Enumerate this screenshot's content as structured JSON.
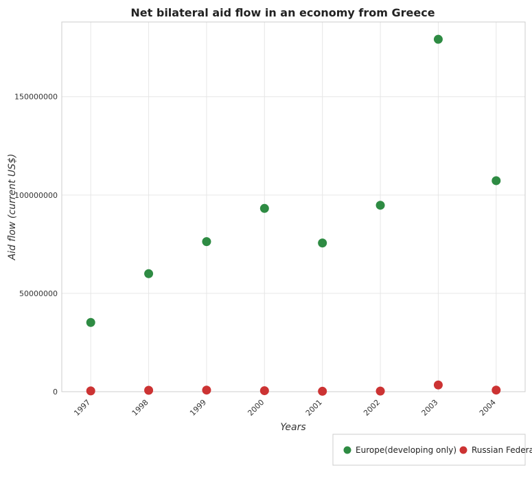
{
  "chart_data": {
    "type": "scatter",
    "title": "Net bilateral aid flow in an economy from Greece",
    "xlabel": "Years",
    "ylabel": "Aid flow (current US$)",
    "categories": [
      "1997",
      "1998",
      "1999",
      "2000",
      "2001",
      "2002",
      "2003",
      "2004"
    ],
    "ylim": [
      0,
      188000000
    ],
    "yticks": [
      0,
      50000000,
      100000000,
      150000000
    ],
    "ytick_labels": [
      "0",
      "50000000",
      "100000000",
      "150000000"
    ],
    "grid": true,
    "legend_position": "bottom-right",
    "series": [
      {
        "name": "Europe(developing only)",
        "color": "#2e8b43",
        "values": [
          35200000,
          60000000,
          76300000,
          93200000,
          75600000,
          94800000,
          179200000,
          107300000
        ]
      },
      {
        "name": "Russian Federation",
        "color": "#cc3333",
        "values": [
          400000,
          700000,
          800000,
          500000,
          200000,
          300000,
          3400000,
          800000
        ]
      }
    ]
  }
}
